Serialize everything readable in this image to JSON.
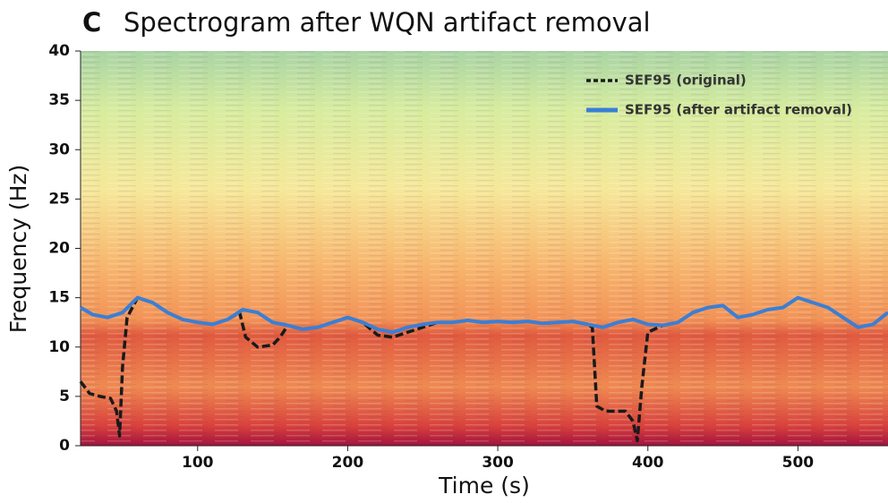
{
  "chart_data": {
    "type": "line",
    "panel_label": "C",
    "title": "Spectrogram after WQN artifact removal",
    "xlabel": "Time (s)",
    "ylabel": "Frequency (Hz)",
    "xlim": [
      22,
      560
    ],
    "ylim": [
      0,
      40
    ],
    "xticks": [
      100,
      200,
      300,
      400,
      500
    ],
    "yticks": [
      0,
      5,
      10,
      15,
      20,
      25,
      30,
      35,
      40
    ],
    "legend": "upper right",
    "series": [
      {
        "name": "SEF95 (original)",
        "color": "#1a1a1a",
        "dashed": true,
        "x": [
          22,
          28,
          35,
          42,
          46,
          48,
          50,
          53,
          60,
          70,
          80,
          90,
          100,
          110,
          120,
          128,
          132,
          140,
          150,
          155,
          160,
          170,
          180,
          190,
          200,
          210,
          220,
          230,
          240,
          250,
          260,
          270,
          280,
          290,
          300,
          310,
          320,
          330,
          340,
          350,
          360,
          363,
          366,
          372,
          385,
          390,
          393,
          396,
          400,
          410
        ],
        "values": [
          6.5,
          5.3,
          5,
          4.8,
          3.5,
          1,
          8,
          13,
          15,
          14.5,
          13.5,
          12.8,
          12.5,
          12.3,
          12.8,
          13.5,
          11,
          10,
          10.2,
          11,
          12.2,
          11.8,
          12,
          12.5,
          13,
          12.5,
          11.2,
          11,
          11.5,
          12,
          12.5,
          12.5,
          12.7,
          12.5,
          12.6,
          12.5,
          12.6,
          12.4,
          12.5,
          12.6,
          12.3,
          12,
          4,
          3.5,
          3.5,
          2.5,
          0.5,
          6,
          11.5,
          12.2
        ]
      },
      {
        "name": "SEF95 (after artifact removal)",
        "color": "#3a7fd5",
        "dashed": false,
        "x": [
          22,
          30,
          40,
          50,
          60,
          70,
          80,
          90,
          100,
          110,
          120,
          130,
          140,
          150,
          160,
          170,
          180,
          190,
          200,
          210,
          220,
          230,
          240,
          250,
          260,
          270,
          280,
          290,
          300,
          310,
          320,
          330,
          340,
          350,
          360,
          370,
          380,
          390,
          400,
          410,
          420,
          430,
          440,
          450,
          460,
          470,
          480,
          490,
          500,
          510,
          520,
          530,
          540,
          550,
          560
        ],
        "values": [
          14,
          13.3,
          13,
          13.5,
          15,
          14.5,
          13.5,
          12.8,
          12.5,
          12.3,
          12.8,
          13.8,
          13.5,
          12.5,
          12.2,
          11.8,
          12,
          12.5,
          13,
          12.5,
          11.8,
          11.5,
          12,
          12.3,
          12.5,
          12.5,
          12.7,
          12.5,
          12.6,
          12.5,
          12.6,
          12.4,
          12.5,
          12.6,
          12.3,
          12,
          12.5,
          12.8,
          12.3,
          12.2,
          12.5,
          13.5,
          14,
          14.2,
          13,
          13.3,
          13.8,
          14,
          15,
          14.5,
          14,
          13,
          12,
          12.3,
          13.5
        ]
      }
    ]
  }
}
